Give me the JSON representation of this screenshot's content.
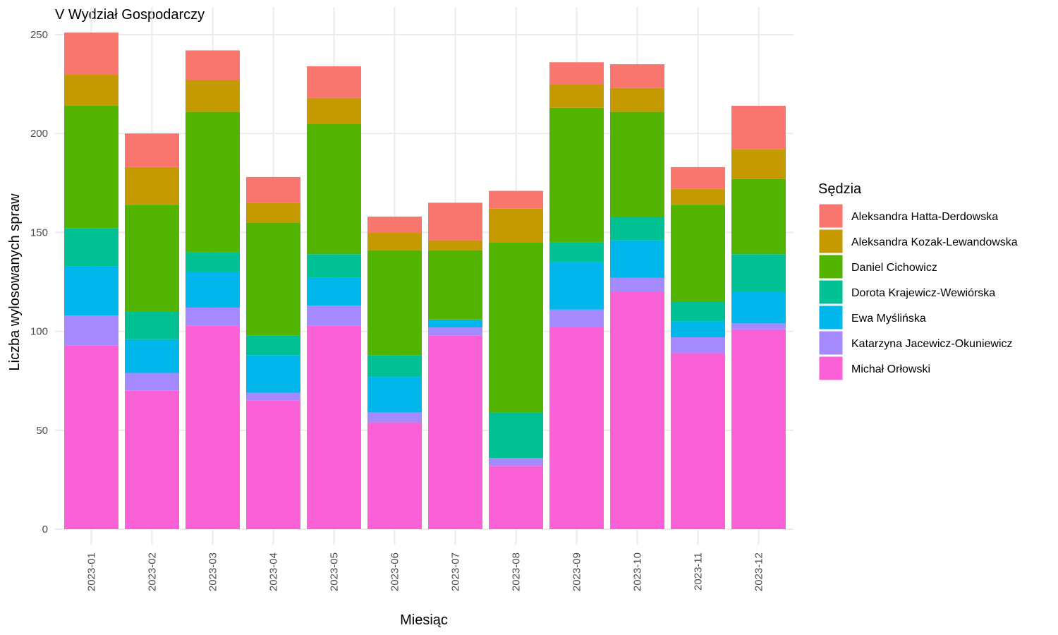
{
  "chart_data": {
    "type": "bar",
    "stacked": true,
    "title": "V Wydział Gospodarczy",
    "xlabel": "Miesiąc",
    "ylabel": "Liczba wylosowanych spraw",
    "ylim": [
      0,
      250
    ],
    "yticks": [
      0,
      50,
      100,
      150,
      200,
      250
    ],
    "grid": true,
    "legend": {
      "title": "Sędzia",
      "position": "right"
    },
    "categories": [
      "2023-01",
      "2023-02",
      "2023-03",
      "2023-04",
      "2023-05",
      "2023-06",
      "2023-07",
      "2023-08",
      "2023-09",
      "2023-10",
      "2023-11",
      "2023-12"
    ],
    "series": [
      {
        "name": "Aleksandra Hatta-Derdowska",
        "color": "#F8766D",
        "values": [
          21,
          17,
          15,
          13,
          16,
          8,
          19,
          9,
          11,
          12,
          11,
          22
        ]
      },
      {
        "name": "Aleksandra Kozak-Lewandowska",
        "color": "#C49A00",
        "values": [
          16,
          19,
          16,
          10,
          13,
          9,
          5,
          17,
          12,
          12,
          8,
          15
        ]
      },
      {
        "name": "Daniel Cichowicz",
        "color": "#53B400",
        "values": [
          62,
          54,
          71,
          57,
          66,
          53,
          35,
          86,
          68,
          53,
          49,
          38
        ]
      },
      {
        "name": "Dorota Krajewicz-Wewiórska",
        "color": "#00C094",
        "values": [
          19,
          14,
          10,
          10,
          12,
          11,
          0,
          23,
          10,
          12,
          10,
          19
        ]
      },
      {
        "name": "Ewa Myślińska",
        "color": "#00B6EB",
        "values": [
          25,
          17,
          18,
          19,
          14,
          18,
          4,
          0,
          24,
          19,
          8,
          16
        ]
      },
      {
        "name": "Katarzyna Jacewicz-Okuniewicz",
        "color": "#A58AFF",
        "values": [
          15,
          9,
          9,
          4,
          10,
          5,
          4,
          4,
          9,
          7,
          8,
          3
        ]
      },
      {
        "name": "Michał Orłowski",
        "color": "#FB61D7",
        "values": [
          93,
          70,
          103,
          65,
          103,
          54,
          98,
          32,
          102,
          120,
          89,
          101
        ]
      }
    ]
  }
}
